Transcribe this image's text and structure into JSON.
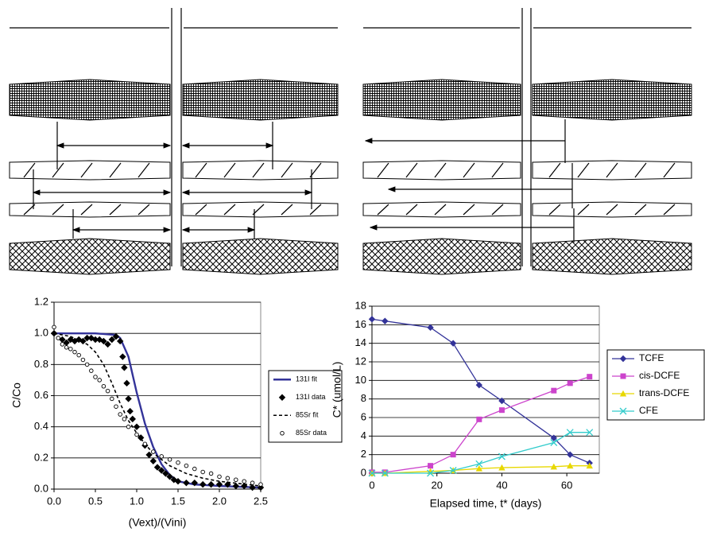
{
  "chart_data": [
    {
      "type": "scatter",
      "y_label": "C/Co",
      "x_label": "(Vext)/(Vini)",
      "xlim": [
        0,
        2.5
      ],
      "ylim": [
        0,
        1.2
      ],
      "xticks": [
        {
          "value": 0,
          "label": "0.0"
        },
        {
          "value": 0.5,
          "label": "0.5"
        },
        {
          "value": 1,
          "label": "1.0"
        },
        {
          "value": 1.5,
          "label": "1.5"
        },
        {
          "value": 2,
          "label": "2.0"
        },
        {
          "value": 2.5,
          "label": "2.5"
        }
      ],
      "yticks": [
        {
          "value": 0,
          "label": "0.0"
        },
        {
          "value": 0.2,
          "label": "0.2"
        },
        {
          "value": 0.4,
          "label": "0.4"
        },
        {
          "value": 0.6,
          "label": "0.6"
        },
        {
          "value": 0.8,
          "label": "0.8"
        },
        {
          "value": 1,
          "label": "1.0"
        },
        {
          "value": 1.2,
          "label": "1.2"
        }
      ],
      "grid": true,
      "series": [
        {
          "name": "131I fit",
          "color": "#333399",
          "line": true,
          "dash": false,
          "marker": "none",
          "x": [
            0,
            0.25,
            0.5,
            0.75,
            0.8,
            0.9,
            1.0,
            1.1,
            1.2,
            1.3,
            1.4,
            1.5,
            1.7,
            2.0,
            2.5
          ],
          "values": [
            1.0,
            1.0,
            1.0,
            0.99,
            0.97,
            0.85,
            0.62,
            0.42,
            0.27,
            0.16,
            0.09,
            0.05,
            0.03,
            0.02,
            0.01
          ]
        },
        {
          "name": "131I data",
          "color": "#000000",
          "line": false,
          "dash": false,
          "marker": "diamond",
          "x": [
            0,
            0.1,
            0.15,
            0.2,
            0.25,
            0.3,
            0.35,
            0.4,
            0.45,
            0.5,
            0.55,
            0.6,
            0.65,
            0.7,
            0.75,
            0.8,
            0.83,
            0.85,
            0.88,
            0.9,
            0.92,
            0.95,
            1.0,
            1.05,
            1.1,
            1.15,
            1.2,
            1.25,
            1.3,
            1.35,
            1.4,
            1.45,
            1.5,
            1.6,
            1.7,
            1.8,
            1.9,
            2.0,
            2.1,
            2.2,
            2.3,
            2.4,
            2.5
          ],
          "values": [
            1.0,
            0.96,
            0.94,
            0.96,
            0.95,
            0.96,
            0.95,
            0.97,
            0.97,
            0.96,
            0.96,
            0.95,
            0.93,
            0.96,
            0.98,
            0.95,
            0.85,
            0.78,
            0.68,
            0.58,
            0.5,
            0.45,
            0.4,
            0.33,
            0.28,
            0.22,
            0.18,
            0.14,
            0.12,
            0.1,
            0.08,
            0.06,
            0.05,
            0.04,
            0.04,
            0.03,
            0.03,
            0.03,
            0.03,
            0.02,
            0.02,
            0.01,
            0.01
          ]
        },
        {
          "name": "85Sr fit",
          "color": "#000000",
          "line": true,
          "dash": true,
          "marker": "none",
          "x": [
            0,
            0.2,
            0.4,
            0.5,
            0.6,
            0.7,
            0.8,
            0.9,
            1.0,
            1.1,
            1.2,
            1.4,
            1.6,
            1.8,
            2.0,
            2.5
          ],
          "values": [
            1.0,
            0.98,
            0.93,
            0.88,
            0.8,
            0.68,
            0.55,
            0.44,
            0.36,
            0.29,
            0.23,
            0.15,
            0.1,
            0.07,
            0.05,
            0.02
          ]
        },
        {
          "name": "85Sr data",
          "color": "#000000",
          "line": false,
          "dash": false,
          "marker": "circle",
          "x": [
            0,
            0.05,
            0.1,
            0.15,
            0.2,
            0.25,
            0.3,
            0.35,
            0.4,
            0.45,
            0.5,
            0.55,
            0.6,
            0.65,
            0.7,
            0.75,
            0.8,
            0.85,
            0.9,
            1.0,
            1.1,
            1.2,
            1.3,
            1.4,
            1.5,
            1.6,
            1.7,
            1.8,
            1.9,
            2.0,
            2.1,
            2.2,
            2.3,
            2.4,
            2.5
          ],
          "values": [
            1.04,
            0.97,
            0.93,
            0.91,
            0.9,
            0.88,
            0.86,
            0.83,
            0.8,
            0.76,
            0.72,
            0.7,
            0.66,
            0.63,
            0.58,
            0.53,
            0.48,
            0.45,
            0.4,
            0.35,
            0.29,
            0.24,
            0.21,
            0.19,
            0.17,
            0.15,
            0.13,
            0.11,
            0.1,
            0.08,
            0.07,
            0.06,
            0.05,
            0.04,
            0.03
          ]
        }
      ]
    },
    {
      "type": "line",
      "y_label": "C* (umol/L)",
      "x_label": "Elapsed time, t* (days)",
      "xlim": [
        0,
        70
      ],
      "ylim": [
        0,
        18
      ],
      "xticks": [
        0,
        20,
        40,
        60
      ],
      "yticks": [
        0,
        2,
        4,
        6,
        8,
        10,
        12,
        14,
        16,
        18
      ],
      "grid": true,
      "x": [
        0,
        4,
        18,
        25,
        33,
        40,
        56,
        61,
        67
      ],
      "series": [
        {
          "name": "TCFE",
          "color": "#333399",
          "marker": "diamond",
          "values": [
            16.6,
            16.4,
            15.7,
            14.0,
            9.5,
            7.8,
            3.8,
            2.0,
            1.1
          ]
        },
        {
          "name": "cis-DCFE",
          "color": "#cc44cc",
          "marker": "square",
          "values": [
            0.1,
            0.1,
            0.8,
            2.0,
            5.8,
            6.8,
            8.9,
            9.7,
            10.4
          ]
        },
        {
          "name": "trans-DCFE",
          "color": "#e8d800",
          "marker": "triangle",
          "values": [
            0,
            0,
            0.2,
            0.3,
            0.5,
            0.6,
            0.7,
            0.8,
            0.8
          ]
        },
        {
          "name": "CFE",
          "color": "#33cccc",
          "marker": "x",
          "values": [
            0,
            0,
            0,
            0.3,
            1.0,
            1.8,
            3.3,
            4.4,
            4.4
          ]
        }
      ]
    }
  ]
}
